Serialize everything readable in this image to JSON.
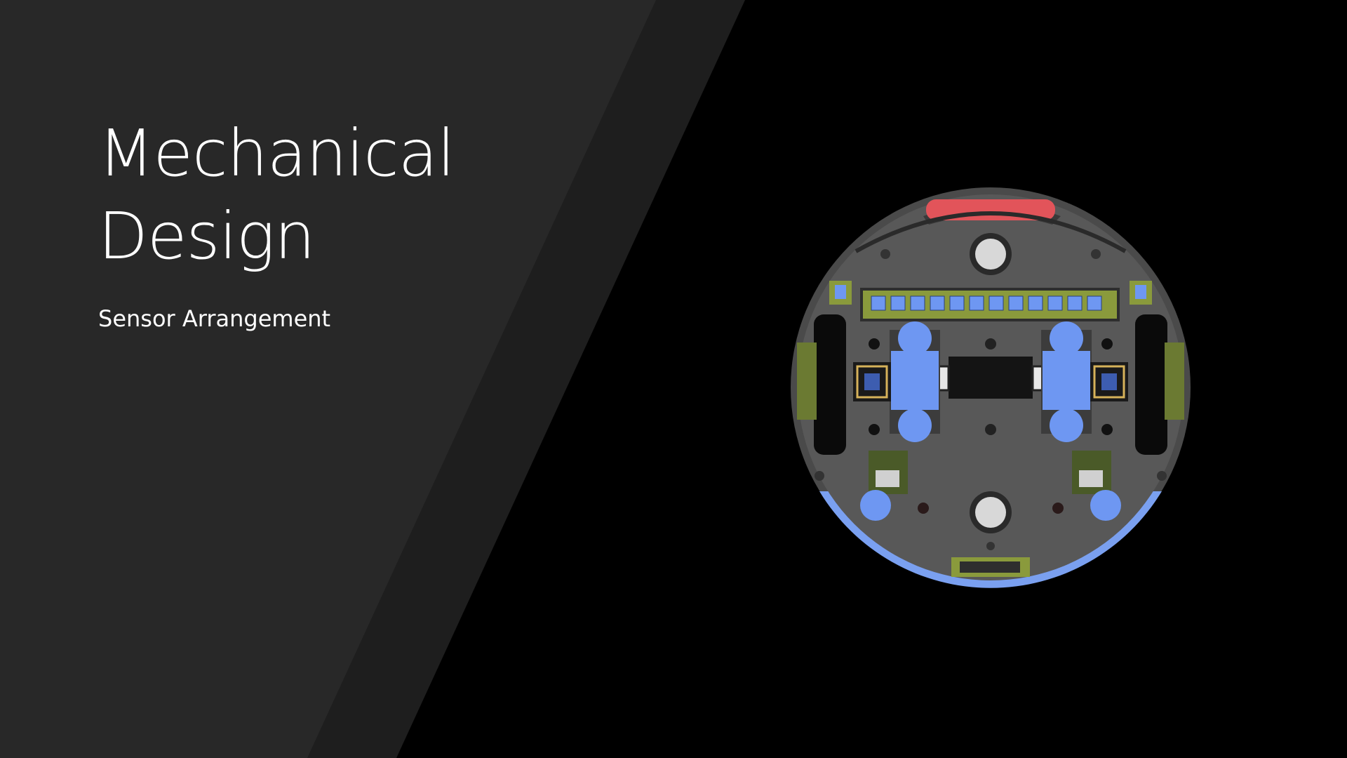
{
  "slide": {
    "title": "Mechanical\nDesign",
    "subtitle": "Sensor Arrangement"
  },
  "colors": {
    "background": "#000000",
    "left_panel": "#282828",
    "diagonal_band": "#1e1e1e",
    "robot_body": "#5a5a5a",
    "front_bumper": "#e2545a",
    "rear_bumper": "#7aa0f0",
    "motor_blue": "#6e97f2",
    "sensor_board": "#8a9a3c"
  },
  "image": {
    "description_icon": "robot-bottom-view-render"
  }
}
